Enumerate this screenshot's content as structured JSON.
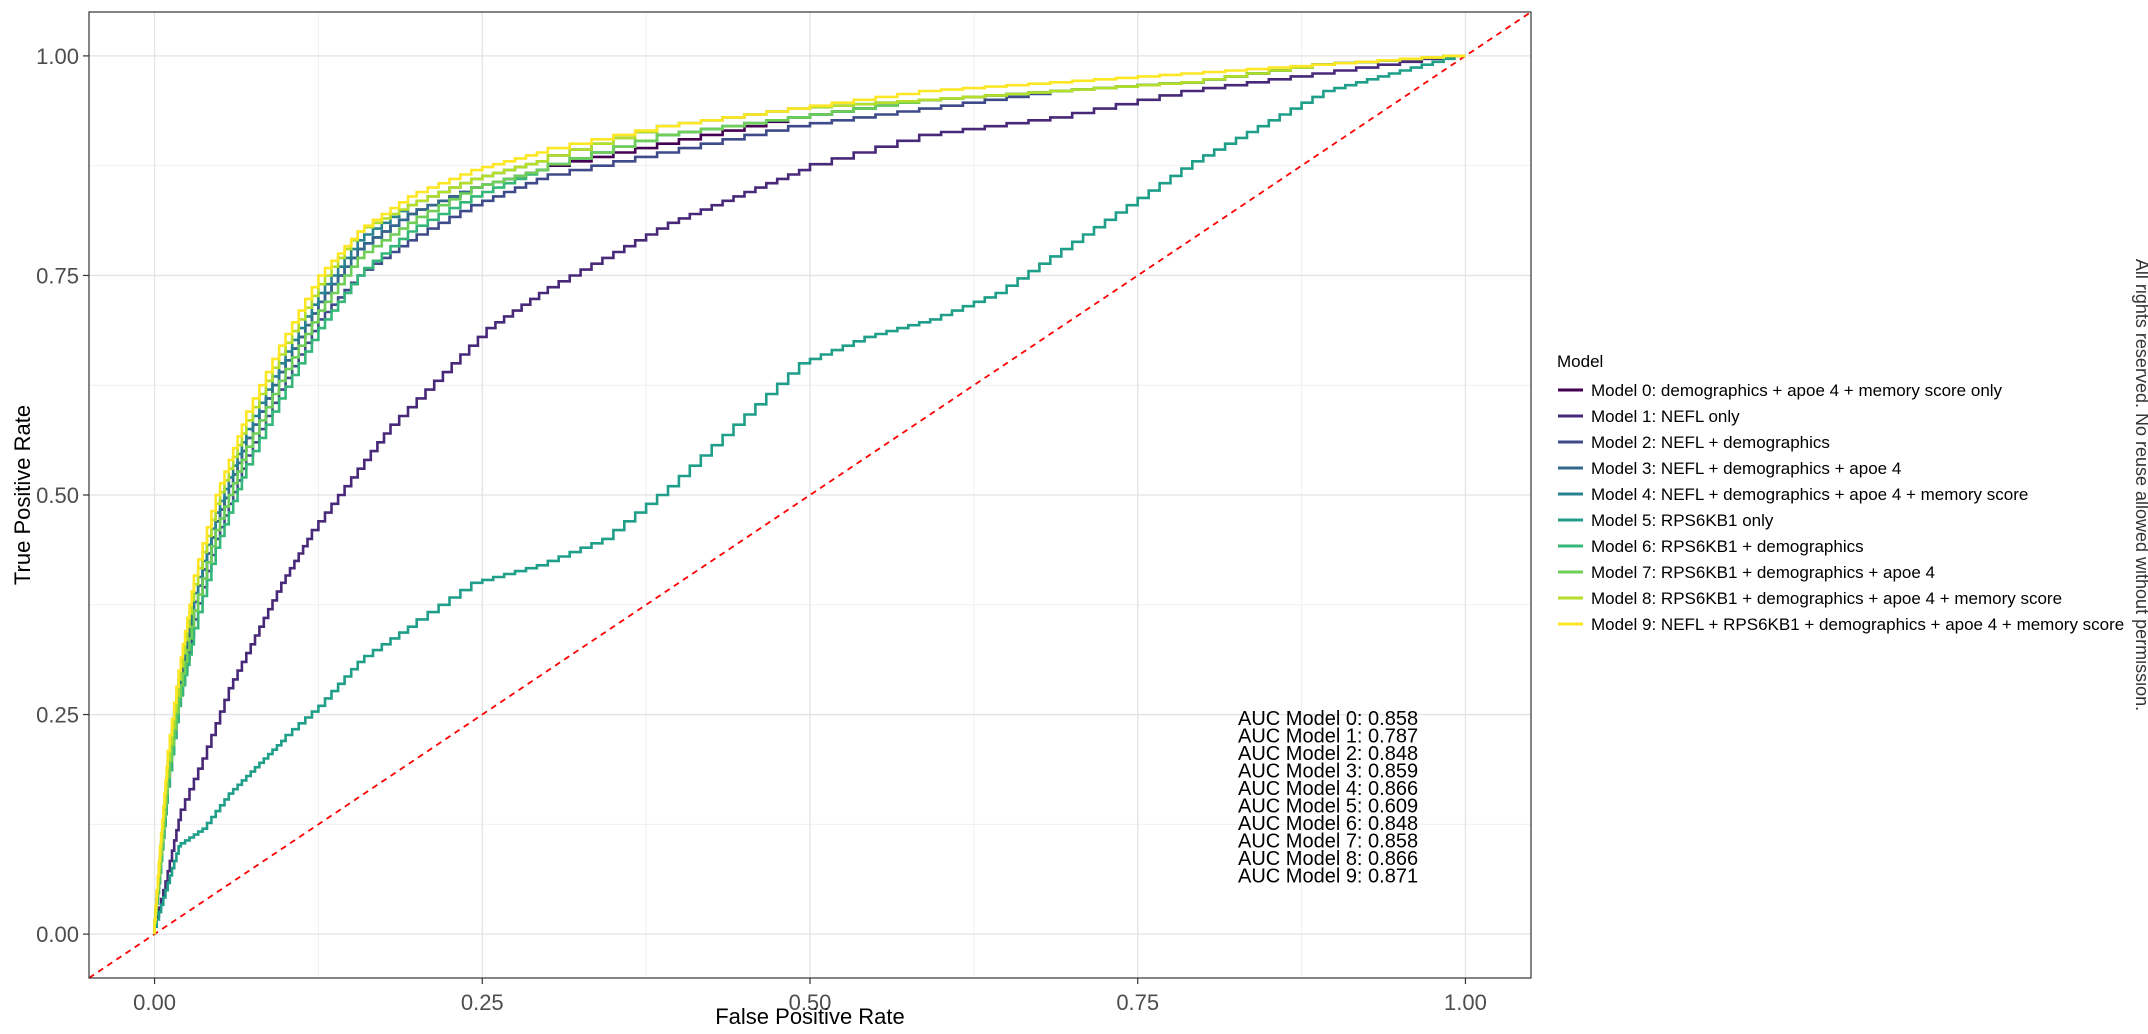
{
  "chart_data": {
    "type": "line",
    "title": "",
    "xlabel": "False Positive Rate",
    "ylabel": "True Positive Rate",
    "xlim": [
      -0.05,
      1.05
    ],
    "ylim": [
      -0.05,
      1.05
    ],
    "xticks": [
      0.0,
      0.25,
      0.5,
      0.75,
      1.0
    ],
    "xtick_labels": [
      "0.00",
      "0.25",
      "0.50",
      "0.75",
      "1.00"
    ],
    "yticks": [
      0.0,
      0.25,
      0.5,
      0.75,
      1.0
    ],
    "ytick_labels": [
      "0.00",
      "0.25",
      "0.50",
      "0.75",
      "1.00"
    ],
    "grid": true,
    "legend_title": "Model",
    "legend_position": "right",
    "reference_line": {
      "x": [
        0,
        1
      ],
      "y": [
        0,
        1
      ],
      "color": "#ff0000",
      "style": "dashed"
    },
    "series": [
      {
        "name": "Model 0: demographics + apoe 4 + memory score only",
        "color": "#440154",
        "x": [
          0,
          0.005,
          0.01,
          0.02,
          0.03,
          0.05,
          0.07,
          0.1,
          0.13,
          0.16,
          0.2,
          0.25,
          0.3,
          0.4,
          0.5,
          0.6,
          0.7,
          0.8,
          0.9,
          1.0
        ],
        "y": [
          0,
          0.08,
          0.17,
          0.28,
          0.36,
          0.47,
          0.55,
          0.64,
          0.72,
          0.78,
          0.82,
          0.85,
          0.87,
          0.9,
          0.93,
          0.95,
          0.96,
          0.97,
          0.99,
          1.0
        ]
      },
      {
        "name": "Model 1: NEFL only",
        "color": "#482878",
        "x": [
          0,
          0.01,
          0.02,
          0.04,
          0.06,
          0.08,
          0.1,
          0.12,
          0.15,
          0.18,
          0.22,
          0.26,
          0.3,
          0.35,
          0.4,
          0.45,
          0.5,
          0.6,
          0.7,
          0.8,
          0.9,
          1.0
        ],
        "y": [
          0,
          0.06,
          0.13,
          0.2,
          0.28,
          0.34,
          0.4,
          0.45,
          0.51,
          0.57,
          0.63,
          0.69,
          0.73,
          0.77,
          0.81,
          0.84,
          0.87,
          0.91,
          0.93,
          0.96,
          0.98,
          1.0
        ]
      },
      {
        "name": "Model 2: NEFL + demographics",
        "color": "#3e4a89",
        "x": [
          0,
          0.005,
          0.01,
          0.02,
          0.03,
          0.05,
          0.07,
          0.1,
          0.13,
          0.16,
          0.2,
          0.25,
          0.3,
          0.4,
          0.5,
          0.6,
          0.7,
          0.8,
          0.9,
          1.0
        ],
        "y": [
          0,
          0.07,
          0.15,
          0.26,
          0.34,
          0.45,
          0.53,
          0.62,
          0.7,
          0.75,
          0.79,
          0.83,
          0.86,
          0.89,
          0.92,
          0.94,
          0.96,
          0.97,
          0.99,
          1.0
        ]
      },
      {
        "name": "Model 3: NEFL + demographics + apoe 4",
        "color": "#31688e",
        "x": [
          0,
          0.005,
          0.01,
          0.02,
          0.03,
          0.05,
          0.07,
          0.1,
          0.13,
          0.16,
          0.2,
          0.25,
          0.3,
          0.4,
          0.5,
          0.6,
          0.7,
          0.8,
          0.9,
          1.0
        ],
        "y": [
          0,
          0.08,
          0.17,
          0.28,
          0.36,
          0.47,
          0.55,
          0.64,
          0.72,
          0.78,
          0.82,
          0.85,
          0.87,
          0.91,
          0.93,
          0.95,
          0.96,
          0.97,
          0.99,
          1.0
        ]
      },
      {
        "name": "Model 4: NEFL + demographics + apoe 4 + memory score",
        "color": "#26828e",
        "x": [
          0,
          0.005,
          0.01,
          0.02,
          0.03,
          0.05,
          0.07,
          0.1,
          0.13,
          0.16,
          0.2,
          0.25,
          0.3,
          0.4,
          0.5,
          0.6,
          0.7,
          0.8,
          0.9,
          1.0
        ],
        "y": [
          0,
          0.09,
          0.18,
          0.29,
          0.37,
          0.48,
          0.56,
          0.65,
          0.73,
          0.79,
          0.83,
          0.86,
          0.88,
          0.92,
          0.94,
          0.95,
          0.96,
          0.97,
          0.99,
          1.0
        ]
      },
      {
        "name": "Model 5: RPS6KB1 only",
        "color": "#1f9e89",
        "x": [
          0,
          0.01,
          0.02,
          0.04,
          0.06,
          0.08,
          0.1,
          0.13,
          0.16,
          0.2,
          0.25,
          0.3,
          0.35,
          0.4,
          0.45,
          0.5,
          0.55,
          0.6,
          0.65,
          0.7,
          0.75,
          0.8,
          0.85,
          0.9,
          0.95,
          1.0
        ],
        "y": [
          0,
          0.05,
          0.1,
          0.12,
          0.16,
          0.19,
          0.22,
          0.26,
          0.31,
          0.35,
          0.4,
          0.42,
          0.45,
          0.51,
          0.58,
          0.65,
          0.68,
          0.7,
          0.73,
          0.78,
          0.83,
          0.88,
          0.92,
          0.96,
          0.98,
          1.0
        ]
      },
      {
        "name": "Model 6: RPS6KB1 + demographics",
        "color": "#35b779",
        "x": [
          0,
          0.005,
          0.01,
          0.02,
          0.03,
          0.05,
          0.07,
          0.1,
          0.13,
          0.16,
          0.2,
          0.25,
          0.3,
          0.4,
          0.5,
          0.6,
          0.7,
          0.8,
          0.9,
          1.0
        ],
        "y": [
          0,
          0.07,
          0.15,
          0.26,
          0.33,
          0.44,
          0.52,
          0.61,
          0.69,
          0.75,
          0.8,
          0.84,
          0.87,
          0.91,
          0.93,
          0.95,
          0.96,
          0.97,
          0.99,
          1.0
        ]
      },
      {
        "name": "Model 7: RPS6KB1 + demographics + apoe 4",
        "color": "#6ece58",
        "x": [
          0,
          0.005,
          0.01,
          0.02,
          0.03,
          0.05,
          0.07,
          0.1,
          0.13,
          0.16,
          0.2,
          0.25,
          0.3,
          0.4,
          0.5,
          0.6,
          0.7,
          0.8,
          0.9,
          1.0
        ],
        "y": [
          0,
          0.08,
          0.16,
          0.27,
          0.35,
          0.46,
          0.54,
          0.63,
          0.71,
          0.77,
          0.81,
          0.85,
          0.87,
          0.91,
          0.93,
          0.95,
          0.96,
          0.97,
          0.99,
          1.0
        ]
      },
      {
        "name": "Model 8: RPS6KB1 + demographics + apoe 4 + memory score",
        "color": "#b5de2b",
        "x": [
          0,
          0.005,
          0.01,
          0.02,
          0.03,
          0.05,
          0.07,
          0.1,
          0.13,
          0.16,
          0.2,
          0.25,
          0.3,
          0.4,
          0.5,
          0.6,
          0.7,
          0.8,
          0.9,
          1.0
        ],
        "y": [
          0,
          0.09,
          0.18,
          0.29,
          0.38,
          0.49,
          0.57,
          0.66,
          0.74,
          0.8,
          0.83,
          0.86,
          0.88,
          0.92,
          0.94,
          0.95,
          0.96,
          0.97,
          0.99,
          1.0
        ]
      },
      {
        "name": "Model 9: NEFL + RPS6KB1 + demographics + apoe 4 + memory score",
        "color": "#fde725",
        "x": [
          0,
          0.005,
          0.01,
          0.02,
          0.03,
          0.05,
          0.07,
          0.1,
          0.13,
          0.16,
          0.2,
          0.25,
          0.3,
          0.4,
          0.5,
          0.6,
          0.7,
          0.8,
          0.9,
          1.0
        ],
        "y": [
          0,
          0.1,
          0.19,
          0.3,
          0.39,
          0.5,
          0.58,
          0.67,
          0.75,
          0.8,
          0.84,
          0.87,
          0.89,
          0.92,
          0.94,
          0.96,
          0.97,
          0.98,
          0.99,
          1.0
        ]
      }
    ],
    "annotations": [
      "AUC Model 0: 0.858",
      "AUC Model 1: 0.787",
      "AUC Model 2: 0.848",
      "AUC Model 3: 0.859",
      "AUC Model 4: 0.866",
      "AUC Model 5: 0.609",
      "AUC Model 6: 0.848",
      "AUC Model 7: 0.858",
      "AUC Model 8: 0.866",
      "AUC Model 9: 0.871"
    ],
    "side_note": "All rights reserved. No reuse allowed without permission."
  }
}
